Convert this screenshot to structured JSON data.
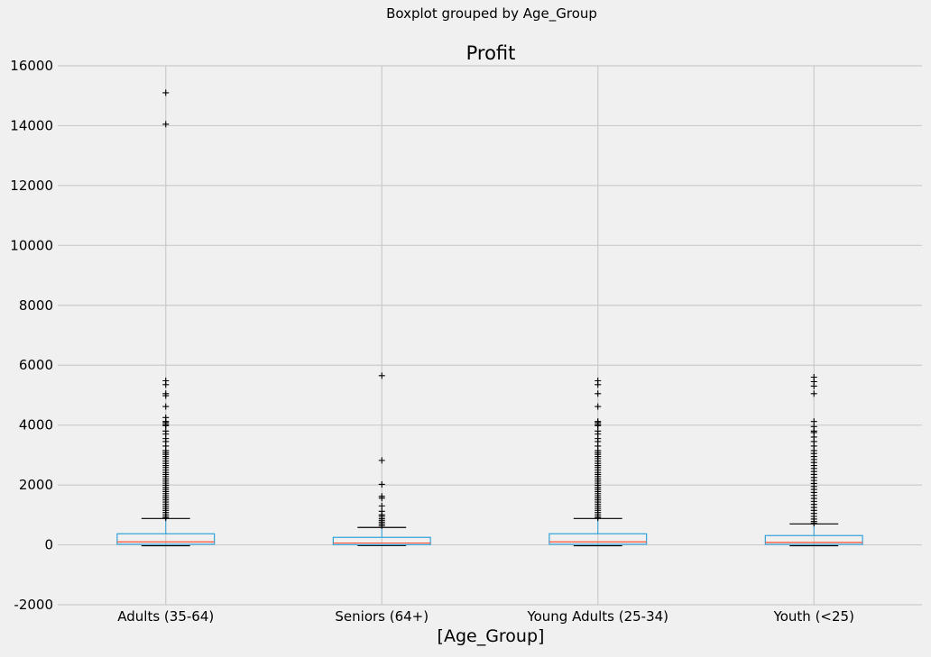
{
  "chart_data": {
    "type": "box",
    "suptitle": "Boxplot grouped by Age_Group",
    "title": "Profit",
    "xlabel": "[Age_Group]",
    "ylabel": "",
    "ylim": [
      -2000,
      16000
    ],
    "yticks": [
      -2000,
      0,
      2000,
      4000,
      6000,
      8000,
      10000,
      12000,
      14000,
      16000
    ],
    "grid": true,
    "colors": {
      "background": "#f0f0f0",
      "grid": "#cbcbcb",
      "box": "#30a2da",
      "median": "#fc4f30",
      "whisker": "#000000",
      "flier": "#000000"
    },
    "categories": [
      "Adults (35-64)",
      "Seniors (64+)",
      "Young Adults (25-34)",
      "Youth (<25)"
    ],
    "boxes": [
      {
        "category": "Adults (35-64)",
        "whislo": -30,
        "q1": 20,
        "med": 100,
        "q3": 370,
        "whishi": 880,
        "fliers": [
          15100,
          14050,
          5480,
          5350,
          5050,
          4980,
          4620,
          4250,
          4120,
          4080,
          4020,
          3980,
          3800,
          3700,
          3550,
          3450,
          3300,
          3150,
          3080,
          3020,
          2950,
          2880,
          2800,
          2720,
          2650,
          2580,
          2500,
          2420,
          2350,
          2280,
          2200,
          2130,
          2060,
          1990,
          1920,
          1850,
          1780,
          1710,
          1640,
          1570,
          1500,
          1430,
          1360,
          1290,
          1220,
          1150,
          1080,
          1010,
          950,
          900
        ]
      },
      {
        "category": "Seniors (64+)",
        "whislo": -20,
        "q1": 5,
        "med": 60,
        "q3": 250,
        "whishi": 580,
        "fliers": [
          5650,
          2820,
          2020,
          1620,
          1560,
          1300,
          1120,
          1000,
          950,
          880,
          820,
          760,
          700,
          640
        ]
      },
      {
        "category": "Young Adults (25-34)",
        "whislo": -30,
        "q1": 20,
        "med": 100,
        "q3": 370,
        "whishi": 880,
        "fliers": [
          5480,
          5350,
          5050,
          4620,
          4120,
          4080,
          4020,
          3980,
          3800,
          3700,
          3550,
          3450,
          3300,
          3150,
          3080,
          3020,
          2950,
          2880,
          2800,
          2720,
          2650,
          2580,
          2500,
          2420,
          2350,
          2280,
          2200,
          2130,
          2060,
          1990,
          1920,
          1850,
          1780,
          1710,
          1640,
          1570,
          1500,
          1430,
          1360,
          1290,
          1220,
          1150,
          1080,
          1010,
          950,
          900
        ]
      },
      {
        "category": "Youth (<25)",
        "whislo": -30,
        "q1": 15,
        "med": 80,
        "q3": 310,
        "whishi": 700,
        "fliers": [
          5600,
          5450,
          5300,
          5050,
          4120,
          3950,
          3800,
          3750,
          3600,
          3450,
          3300,
          3150,
          3050,
          2950,
          2850,
          2750,
          2650,
          2550,
          2450,
          2350,
          2250,
          2150,
          2050,
          1950,
          1850,
          1750,
          1650,
          1550,
          1450,
          1350,
          1250,
          1150,
          1050,
          950,
          860,
          780,
          720
        ]
      }
    ]
  }
}
